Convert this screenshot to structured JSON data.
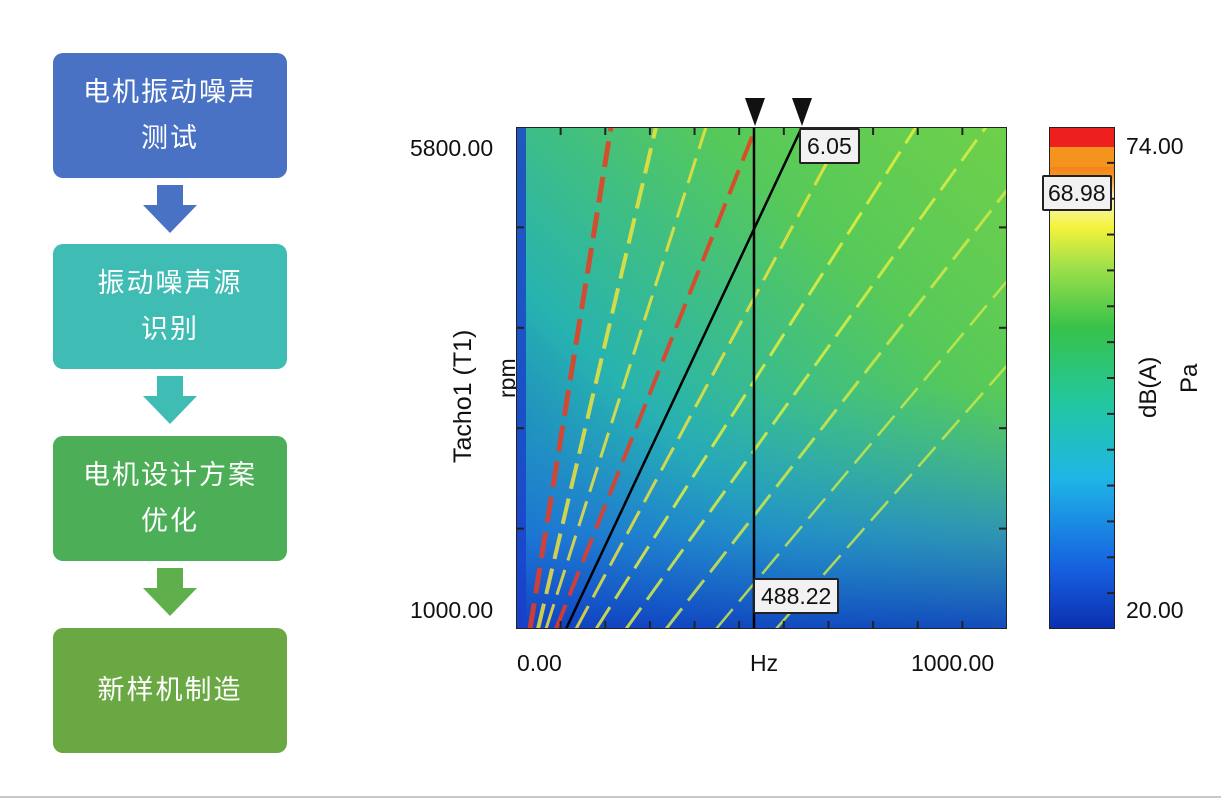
{
  "flowchart": {
    "steps": [
      {
        "label": "电机振动噪声\n测试",
        "color": "#4a72c4"
      },
      {
        "label": "振动噪声源\n识别",
        "color": "#3fbcb3"
      },
      {
        "label": "电机设计方案\n优化",
        "color": "#4cae57"
      },
      {
        "label": "新样机制造",
        "color": "#6aa843"
      }
    ],
    "arrow_colors": [
      "#4a72c4",
      "#3fbcb3",
      "#5fb04d"
    ]
  },
  "colormap": {
    "ylabel": "Tacho1 (T1)",
    "yunit": "rpm",
    "xunit": "Hz",
    "y_min_label": "1000.00",
    "y_max_label": "5800.00",
    "x_min_label": "0.00",
    "x_max_label": "1000.00",
    "cursor_freq_label": "488.22",
    "order_label": "6.05",
    "colorbar": {
      "max_label": "74.00",
      "min_label": "20.00",
      "marker_label": "68.98",
      "quantity": "dB(A)",
      "unit": "Pa"
    }
  },
  "chart_data": {
    "type": "heatmap",
    "xlabel": "Hz",
    "ylabel": "Tacho1 (T1) rpm",
    "xlim": [
      0,
      1000
    ],
    "ylim": [
      1000,
      5800
    ],
    "zlim": [
      20,
      74
    ],
    "cursor": {
      "x": 488.22,
      "order": 6.05
    },
    "colorbar_marker": 68.98
  }
}
